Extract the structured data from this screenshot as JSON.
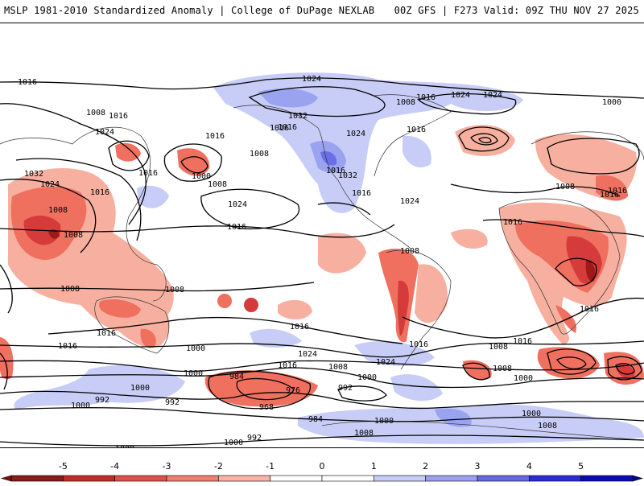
{
  "header": {
    "left": "MSLP 1981-2010 Standardized Anomaly | College of DuPage NEXLAB",
    "right": "00Z GFS | F273 Valid: 09Z THU NOV 27 2025"
  },
  "map": {
    "isobar_labels": [
      "1016",
      "1024",
      "1024",
      "1008",
      "1016",
      "1024",
      "1016",
      "1016",
      "1008",
      "1032",
      "1016",
      "1008",
      "1024",
      "1016",
      "1000",
      "1016",
      "1008",
      "1000",
      "1032",
      "1024",
      "1008",
      "1016",
      "1008",
      "1016",
      "1024",
      "1016",
      "1032",
      "1024",
      "1016",
      "1016",
      "1016",
      "1016",
      "1024",
      "1016",
      "1008",
      "1008",
      "1008",
      "1016",
      "1008",
      "1016",
      "1016",
      "1000",
      "1024",
      "1016",
      "1008",
      "1016",
      "1000",
      "1024",
      "1016",
      "1008",
      "1000",
      "1008",
      "1016",
      "1000",
      "992",
      "1000",
      "984",
      "976",
      "992",
      "968",
      "1000",
      "984",
      "1008",
      "1000",
      "992",
      "1008",
      "1000",
      "1008",
      "1000",
      "992"
    ],
    "anomaly_colors": {
      "strong_neg": "#9e1a1a",
      "neg3": "#d63b3b",
      "neg2": "#f07060",
      "neg1": "#f7b0a0",
      "pos1": "#c8cdf7",
      "pos2": "#9aa3f0",
      "pos3": "#6a6ee6"
    }
  },
  "colorbar": {
    "ticks": [
      "-5",
      "-4",
      "-3",
      "-2",
      "-1",
      "0",
      "1",
      "2",
      "3",
      "4",
      "5"
    ],
    "colors": [
      "#8b1a1a",
      "#c42a2a",
      "#e0504a",
      "#ef7f6f",
      "#f7b4a6",
      "#ffffff",
      "#ffffff",
      "#c9ccf7",
      "#9aa0ef",
      "#6568e0",
      "#2b2bd9",
      "#0a0ab8"
    ]
  }
}
